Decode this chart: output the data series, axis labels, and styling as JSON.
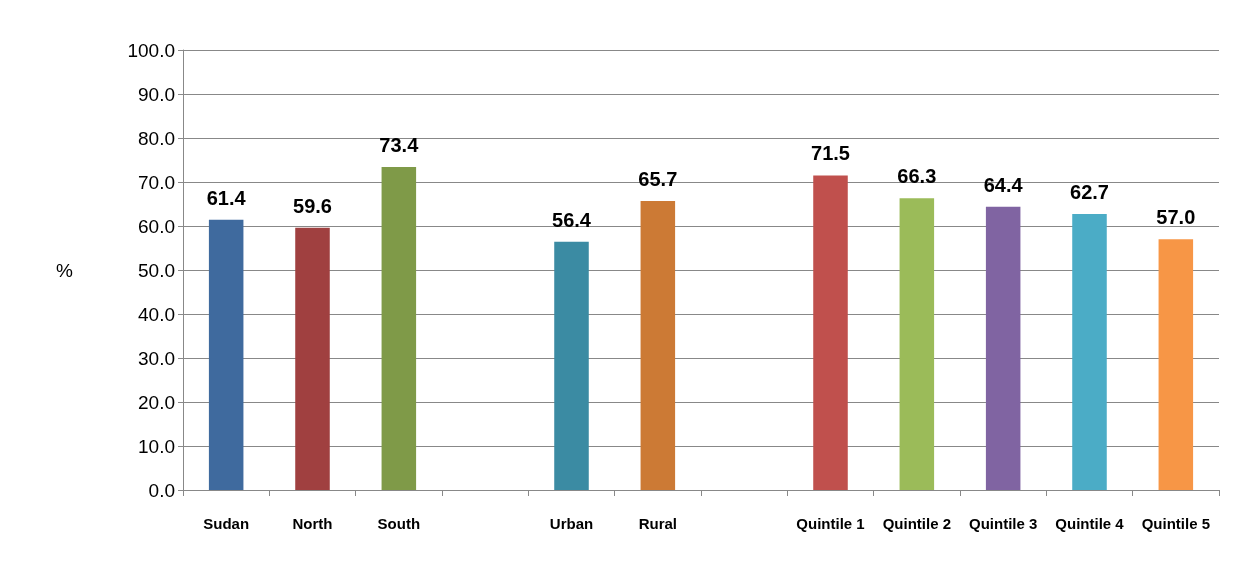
{
  "chart_data": {
    "type": "bar",
    "ylabel": "%",
    "categories": [
      "Sudan",
      "North",
      "South",
      null,
      "Urban",
      "Rural",
      null,
      "Quintile 1",
      "Quintile 2",
      "Quintile 3",
      "Quintile 4",
      "Quintile 5"
    ],
    "values": [
      61.4,
      59.6,
      73.4,
      null,
      56.4,
      65.7,
      null,
      71.5,
      66.3,
      64.4,
      62.7,
      57.0
    ],
    "value_labels": [
      "61.4",
      "59.6",
      "73.4",
      null,
      "56.4",
      "65.7",
      null,
      "71.5",
      "66.3",
      "64.4",
      "62.7",
      "57.0"
    ],
    "colors": [
      "#3f6a9e",
      "#a04040",
      "#7f9a48",
      "#000000",
      "#3b8ba3",
      "#cc7a35",
      "#000000",
      "#c0504d",
      "#9bbb59",
      "#8064a2",
      "#4bacc6",
      "#f79646"
    ],
    "ylim": [
      0,
      100
    ],
    "yticks": [
      {
        "value": 0,
        "label": "0.0"
      },
      {
        "value": 10,
        "label": "10.0"
      },
      {
        "value": 20,
        "label": "20.0"
      },
      {
        "value": 30,
        "label": "30.0"
      },
      {
        "value": 40,
        "label": "40.0"
      },
      {
        "value": 50,
        "label": "50.0"
      },
      {
        "value": 60,
        "label": "60.0"
      },
      {
        "value": 70,
        "label": "70.0"
      },
      {
        "value": 80,
        "label": "80.0"
      },
      {
        "value": 90,
        "label": "90.0"
      },
      {
        "value": 100,
        "label": "100.0"
      }
    ],
    "grid": "y"
  }
}
